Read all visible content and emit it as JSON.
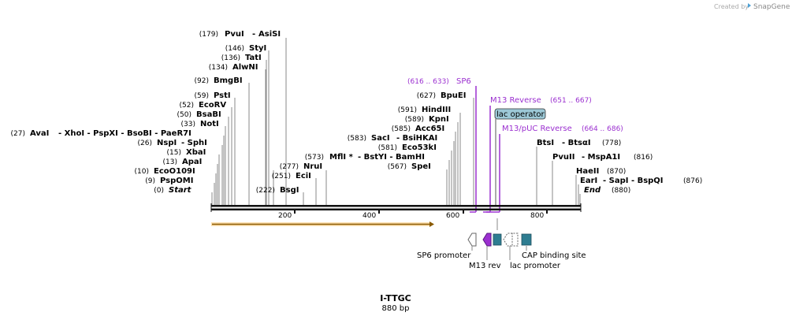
{
  "credit": {
    "prefix": "Created by",
    "brand": "SnapGene"
  },
  "map": {
    "name": "I-TTGC",
    "length_label": "880 bp"
  },
  "ticks": [
    "200",
    "400",
    "600",
    "800"
  ],
  "sites": {
    "pvui": {
      "pos": "(179)",
      "name": "PvuI",
      "sep": "-",
      "name2": "AsiSI"
    },
    "styi": {
      "pos": "(146)",
      "name": "StyI"
    },
    "tati": {
      "pos": "(136)",
      "name": "TatI"
    },
    "alwni": {
      "pos": "(134)",
      "name": "AlwNI"
    },
    "bmgbi": {
      "pos": "(92)",
      "name": "BmgBI"
    },
    "psti": {
      "pos": "(59)",
      "name": "PstI"
    },
    "ecorv": {
      "pos": "(52)",
      "name": "EcoRV"
    },
    "bsabi": {
      "pos": "(50)",
      "name": "BsaBI"
    },
    "noti": {
      "pos": "(33)",
      "name": "NotI"
    },
    "avai": {
      "pos": "(27)",
      "name": "AvaI",
      "more": "- XhoI - PspXI - BsoBI - PaeR7I"
    },
    "nspi": {
      "pos": "(26)",
      "name": "NspI",
      "more": "- SphI"
    },
    "xbai": {
      "pos": "(15)",
      "name": "XbaI"
    },
    "apai": {
      "pos": "(13)",
      "name": "ApaI"
    },
    "ecoo109i": {
      "pos": "(10)",
      "name": "EcoO109I"
    },
    "pspomi": {
      "pos": "(9)",
      "name": "PspOMI"
    },
    "start": {
      "pos": "(0)",
      "name": "Start"
    },
    "nrui": {
      "pos": "(277)",
      "name": "NruI"
    },
    "ecii": {
      "pos": "(251)",
      "name": "EciI"
    },
    "bsgi": {
      "pos": "(222)",
      "name": "BsgI"
    },
    "bpuei": {
      "pos": "(627)",
      "name": "BpuEI"
    },
    "hindiii": {
      "pos": "(591)",
      "name": "HindIII"
    },
    "kpni": {
      "pos": "(589)",
      "name": "KpnI"
    },
    "acc65i": {
      "pos": "(585)",
      "name": "Acc65I"
    },
    "saci": {
      "pos": "(583)",
      "name": "SacI",
      "more": "- BsiHKAI"
    },
    "eco53ki": {
      "pos": "(581)",
      "name": "Eco53kI"
    },
    "mfli": {
      "pos": "(573)",
      "name": "MflI *",
      "more": "- BstYI - BamHI"
    },
    "spei": {
      "pos": "(567)",
      "name": "SpeI"
    },
    "btsi": {
      "name": "BtsI",
      "more": "- BtsαI",
      "pos": "(778)"
    },
    "pvuii": {
      "name": "PvuII",
      "more": "- MspA1I",
      "pos": "(816)"
    },
    "haeii": {
      "name": "HaeII",
      "pos": "(870)"
    },
    "eari": {
      "name": "EarI",
      "more": "- SapI - BspQI",
      "pos": "(876)"
    },
    "end": {
      "name": "End",
      "pos": "(880)"
    }
  },
  "primers": {
    "sp6": {
      "range": "(616 .. 633)",
      "name": "SP6"
    },
    "m13rev": {
      "name": "M13 Reverse",
      "range": "(651 .. 667)"
    },
    "lacop": {
      "name": "lac operator"
    },
    "m13puc": {
      "name": "M13/pUC Reverse",
      "range": "(664 .. 686)"
    }
  },
  "features": {
    "sp6prom": "SP6 promoter",
    "m13rev": "M13 rev",
    "lacprom": "lac promoter",
    "cap": "CAP binding site"
  },
  "colors": {
    "purple": "#9b30d0",
    "orange": "#f5a623",
    "teal": "#2e7d91",
    "lac_box": "#9cc8d6"
  }
}
